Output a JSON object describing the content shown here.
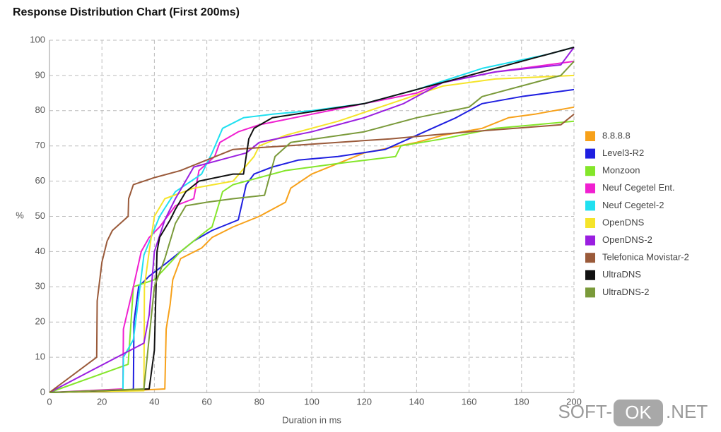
{
  "chart_data": {
    "type": "line",
    "title": "Response Distribution Chart (First 200ms)",
    "x_label": "Duration in ms",
    "y_label": "%",
    "xlim": [
      0,
      200
    ],
    "xticks": [
      0,
      20,
      40,
      60,
      80,
      100,
      120,
      140,
      160,
      180,
      200
    ],
    "ylim": [
      0,
      100
    ],
    "yticks": [
      0,
      10,
      20,
      30,
      40,
      50,
      60,
      70,
      80,
      90,
      100
    ],
    "grid": true,
    "legend": "right",
    "series": [
      {
        "name": "8.8.8.8",
        "color": "#f7a11a",
        "x": [
          0,
          30,
          44,
          44.5,
          46,
          47,
          50,
          58,
          62,
          70,
          80,
          90,
          92,
          100,
          110,
          120,
          140,
          150,
          165,
          175,
          185,
          200
        ],
        "values": [
          0,
          0.5,
          1,
          18,
          25,
          32,
          38,
          41,
          44,
          47,
          50,
          54,
          58,
          62,
          65,
          68,
          71,
          73,
          75,
          78,
          79,
          81
        ]
      },
      {
        "name": "Level3-R2",
        "color": "#1f1fe0",
        "x": [
          0,
          30,
          32,
          32.2,
          34,
          38,
          45,
          55,
          62,
          72,
          75,
          78,
          85,
          95,
          110,
          128,
          140,
          155,
          165,
          180,
          200
        ],
        "values": [
          0,
          0.5,
          1,
          20,
          30,
          33,
          37,
          43,
          46,
          49,
          59,
          62,
          64,
          66,
          67,
          69,
          73,
          78,
          82,
          84,
          86
        ]
      },
      {
        "name": "Monzoon",
        "color": "#84e62a",
        "x": [
          0,
          30,
          32,
          40,
          50,
          60,
          62,
          66,
          70,
          80,
          90,
          110,
          132,
          134,
          150,
          170,
          200
        ],
        "values": [
          0,
          8,
          30,
          32,
          40,
          46,
          47,
          57,
          59,
          61,
          63,
          65,
          67,
          70,
          72,
          75,
          77
        ]
      },
      {
        "name": "Neuf Cegetel Ent.",
        "color": "#f020d0",
        "x": [
          0,
          28,
          28.2,
          32,
          35,
          38,
          42,
          48,
          55,
          57,
          63,
          65,
          72,
          80,
          100,
          120,
          140,
          150,
          170,
          200
        ],
        "values": [
          0,
          1,
          18,
          30,
          40,
          44,
          47,
          53,
          55,
          63,
          67,
          71,
          74,
          76,
          79,
          82,
          85,
          88,
          91,
          94
        ]
      },
      {
        "name": "Neuf Cegetel-2",
        "color": "#20e0f0",
        "x": [
          0,
          28,
          28.2,
          32,
          36,
          42,
          48,
          58,
          62,
          66,
          74,
          85,
          100,
          120,
          140,
          165,
          190,
          200
        ],
        "values": [
          0,
          0.5,
          10,
          15,
          39,
          50,
          57,
          62,
          68,
          75,
          78,
          79,
          80,
          82,
          86,
          92,
          96,
          98
        ]
      },
      {
        "name": "OpenDNS",
        "color": "#f5e42a",
        "x": [
          0,
          36,
          36.2,
          38,
          40,
          44,
          55,
          70,
          78,
          80,
          90,
          110,
          130,
          150,
          170,
          200
        ],
        "values": [
          0,
          0.5,
          30,
          40,
          50,
          55,
          58,
          60,
          67,
          70,
          73,
          77,
          82,
          87,
          89,
          90
        ]
      },
      {
        "name": "OpenDNS-2",
        "color": "#9a1fe0",
        "x": [
          0,
          36,
          38,
          40,
          44,
          48,
          55,
          65,
          75,
          80,
          100,
          120,
          135,
          150,
          170,
          195,
          200
        ],
        "values": [
          0,
          14,
          22,
          40,
          49,
          55,
          64,
          66,
          68,
          71,
          74,
          78,
          82,
          88,
          91,
          93,
          98
        ]
      },
      {
        "name": "Telefonica Movistar-2",
        "color": "#9a5a3a",
        "x": [
          0,
          18,
          18.2,
          20,
          22,
          24,
          30,
          30.2,
          32,
          40,
          50,
          70,
          90,
          130,
          160,
          195,
          200
        ],
        "values": [
          0,
          10,
          26,
          37,
          43,
          46,
          50,
          55,
          59,
          61,
          63,
          69,
          70,
          72,
          74,
          76,
          79
        ]
      },
      {
        "name": "UltraDNS",
        "color": "#111111",
        "x": [
          0,
          20,
          38,
          40,
          41,
          42,
          46,
          48,
          52,
          57,
          70,
          74,
          76,
          78,
          85,
          120,
          150,
          180,
          200
        ],
        "values": [
          0,
          0.5,
          1,
          12,
          40,
          44,
          49,
          52,
          57,
          60,
          62,
          62,
          72,
          75,
          78,
          82,
          88,
          94,
          98
        ]
      },
      {
        "name": "UltraDNS-2",
        "color": "#7a9a3a",
        "x": [
          0,
          36,
          40,
          44,
          48,
          52,
          60,
          70,
          82,
          86,
          92,
          120,
          140,
          160,
          165,
          195,
          200
        ],
        "values": [
          0,
          1,
          30,
          38,
          48,
          53,
          54,
          55,
          56,
          67,
          71,
          74,
          78,
          81,
          84,
          90,
          94
        ]
      }
    ]
  },
  "watermark": {
    "left": "SOFT-",
    "badge": "OK",
    "right": ".NET"
  }
}
